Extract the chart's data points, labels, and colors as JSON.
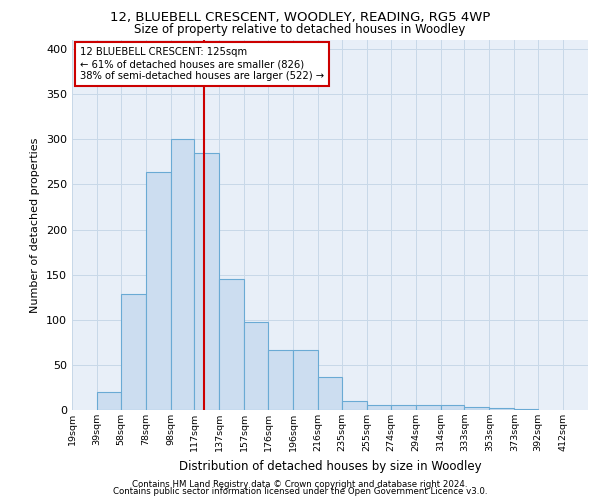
{
  "title1": "12, BLUEBELL CRESCENT, WOODLEY, READING, RG5 4WP",
  "title2": "Size of property relative to detached houses in Woodley",
  "xlabel": "Distribution of detached houses by size in Woodley",
  "ylabel": "Number of detached properties",
  "footer1": "Contains HM Land Registry data © Crown copyright and database right 2024.",
  "footer2": "Contains public sector information licensed under the Open Government Licence v3.0.",
  "annotation_line1": "12 BLUEBELL CRESCENT: 125sqm",
  "annotation_line2": "← 61% of detached houses are smaller (826)",
  "annotation_line3": "38% of semi-detached houses are larger (522) →",
  "property_size": 125,
  "bar_labels": [
    "19sqm",
    "39sqm",
    "58sqm",
    "78sqm",
    "98sqm",
    "117sqm",
    "137sqm",
    "157sqm",
    "176sqm",
    "196sqm",
    "216sqm",
    "235sqm",
    "255sqm",
    "274sqm",
    "294sqm",
    "314sqm",
    "333sqm",
    "353sqm",
    "373sqm",
    "392sqm",
    "412sqm"
  ],
  "bar_values": [
    0,
    20,
    128,
    264,
    300,
    285,
    145,
    97,
    66,
    66,
    37,
    10,
    5,
    5,
    5,
    5,
    3,
    2,
    1,
    0,
    0
  ],
  "bar_edges": [
    19,
    39,
    58,
    78,
    98,
    117,
    137,
    157,
    176,
    196,
    216,
    235,
    255,
    274,
    294,
    314,
    333,
    353,
    373,
    392,
    412
  ],
  "bar_color": "#ccddf0",
  "bar_edgecolor": "#6aaad4",
  "vline_x": 125,
  "vline_color": "#cc0000",
  "background_color": "#ffffff",
  "axes_facecolor": "#e8eff8",
  "grid_color": "#c8d8e8",
  "annotation_box_edgecolor": "#cc0000",
  "ylim": [
    0,
    410
  ],
  "yticks": [
    0,
    50,
    100,
    150,
    200,
    250,
    300,
    350,
    400
  ]
}
